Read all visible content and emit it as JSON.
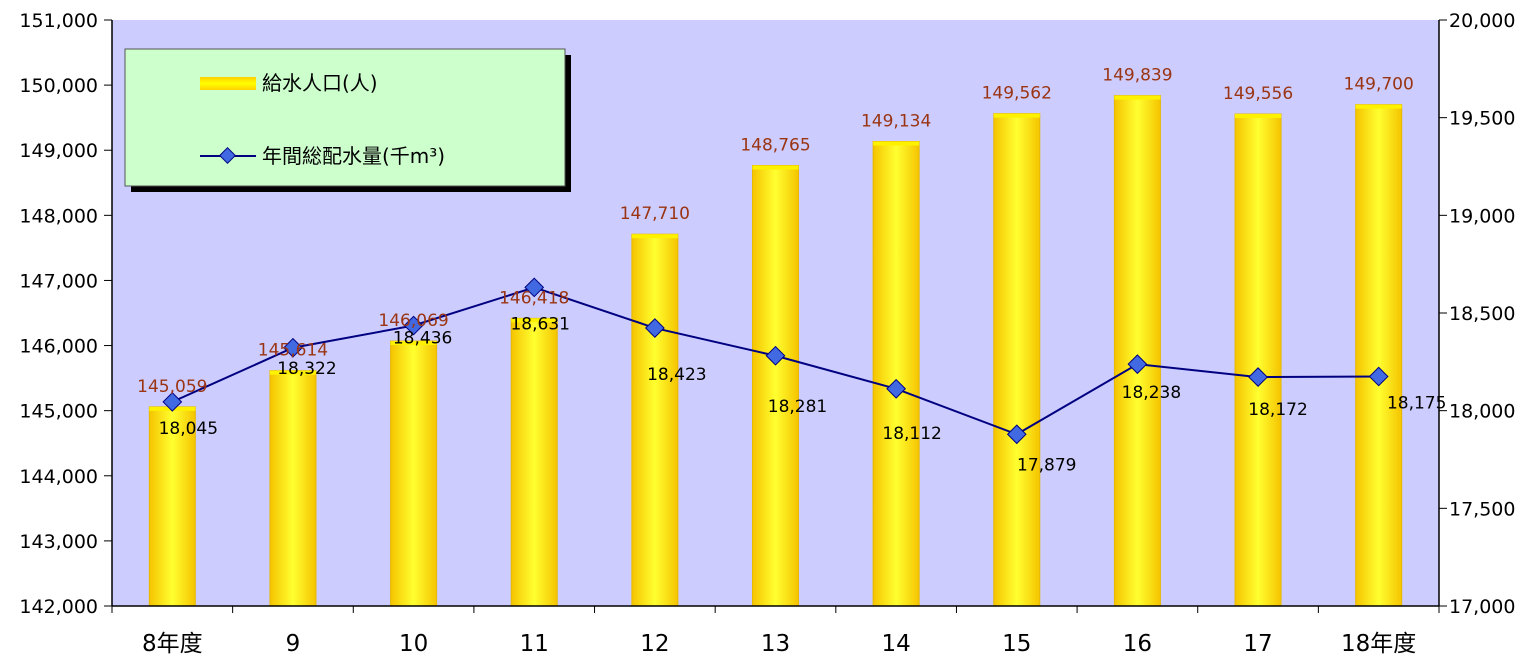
{
  "chart_data": {
    "type": "bar+line",
    "categories": [
      "8年度",
      "9",
      "10",
      "11",
      "12",
      "13",
      "14",
      "15",
      "16",
      "17",
      "18年度"
    ],
    "series": [
      {
        "name": "給水人口(人)",
        "type": "bar",
        "axis": "left",
        "values": [
          145059,
          145614,
          146069,
          146418,
          147710,
          148765,
          149134,
          149562,
          149839,
          149556,
          149700
        ],
        "labels": [
          "145,059",
          "145,614",
          "146,069",
          "146,418",
          "147,710",
          "148,765",
          "149,134",
          "149,562",
          "149,839",
          "149,556",
          "149,700"
        ]
      },
      {
        "name": "年間総配水量(千m³)",
        "type": "line",
        "axis": "right",
        "values": [
          18045,
          18322,
          18436,
          18631,
          18423,
          18281,
          18112,
          17879,
          18238,
          18172,
          18175
        ],
        "labels": [
          "18,045",
          "18,322",
          "18,436",
          "18,631",
          "18,423",
          "18,281",
          "18,112",
          "17,879",
          "18,238",
          "18,172",
          "18,175"
        ]
      }
    ],
    "y_left": {
      "range": [
        142000,
        151000
      ],
      "ticks": [
        "142,000",
        "143,000",
        "144,000",
        "145,000",
        "146,000",
        "147,000",
        "148,000",
        "149,000",
        "150,000",
        "151,000"
      ]
    },
    "y_right": {
      "range": [
        17000,
        20000
      ],
      "ticks": [
        "17,000",
        "17,500",
        "18,000",
        "18,500",
        "19,000",
        "19,500",
        "20,000"
      ]
    },
    "legend": {
      "position": "top-left",
      "bar_label": "給水人口(人)",
      "line_label": "年間総配水量(千m³)"
    },
    "colors": {
      "plot_bg": "#ccccff",
      "bar_top": "#ffd700",
      "bar_mid": "#ffff00",
      "line": "#000080",
      "marker": "#4169e1",
      "bar_label": "#9a3412",
      "legend_bg": "#ccffcc"
    },
    "grid": false
  }
}
